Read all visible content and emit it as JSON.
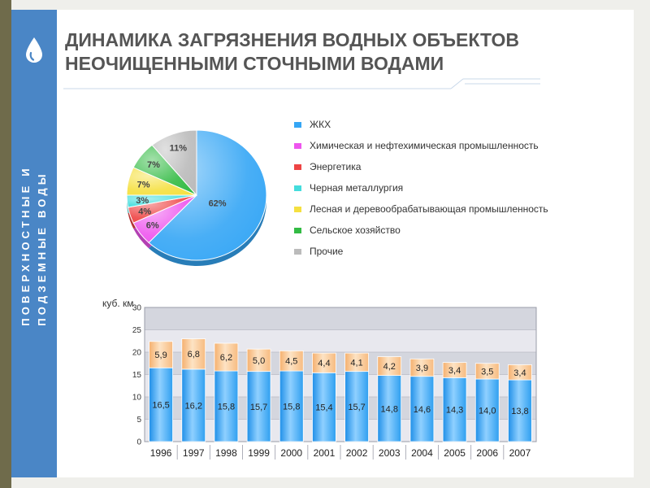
{
  "slide": {
    "title_lines": [
      "ДИНАМИКА ЗАГРЯЗНЕНИЯ ВОДНЫХ ОБЪЕКТОВ",
      "НЕОЧИЩЕННЫМИ СТОЧНЫМИ ВОДАМИ"
    ],
    "side_text_lines": [
      "ПОВЕРХНОСТНЫЕ И",
      "ПОДЗЕМНЫЕ ВОДЫ"
    ],
    "logo_icon": "water-drop-icon"
  },
  "colors": {
    "blue_strip": "#4a86c6",
    "olive_bar": "#6f6b4b",
    "bar_bottom": "#2f9ff0",
    "bar_top": "#f9c48a"
  },
  "chart_data": [
    {
      "type": "pie",
      "slices": [
        {
          "name": "ЖКХ",
          "value": 62,
          "label": "62%",
          "color": "#35a6f5"
        },
        {
          "name": "Химическая и нефтехимическая промышленность",
          "value": 6,
          "label": "6%",
          "color": "#ee55ee"
        },
        {
          "name": "Энергетика",
          "value": 4,
          "label": "4%",
          "color": "#ee4444"
        },
        {
          "name": "Черная металлургия",
          "value": 3,
          "label": "3%",
          "color": "#44dddd"
        },
        {
          "name": "Лесная и деревообрабатывающая промышленность",
          "value": 7,
          "label": "7%",
          "color": "#f5e040"
        },
        {
          "name": "Сельское хозяйство",
          "value": 7,
          "label": "7%",
          "color": "#33bb44"
        },
        {
          "name": "Прочие",
          "value": 11,
          "label": "11%",
          "color": "#bbbbbb"
        }
      ],
      "legend_placement": "right"
    },
    {
      "type": "bar",
      "stacked": true,
      "ylabel": "куб. км",
      "ylim": [
        0,
        30
      ],
      "yticks": [
        "0",
        "5",
        "10",
        "15",
        "20",
        "25",
        "30"
      ],
      "grid": true,
      "categories": [
        "1996",
        "1997",
        "1998",
        "1999",
        "2000",
        "2001",
        "2002",
        "2003",
        "2004",
        "2005",
        "2006",
        "2007"
      ],
      "series": [
        {
          "values": [
            16.5,
            16.2,
            15.8,
            15.7,
            15.8,
            15.4,
            15.7,
            14.8,
            14.6,
            14.3,
            14.0,
            13.8
          ],
          "labels": [
            "16,5",
            "16,2",
            "15,8",
            "15,7",
            "15,8",
            "15,4",
            "15,7",
            "14,8",
            "14,6",
            "14,3",
            "14,0",
            "13,8"
          ]
        },
        {
          "values": [
            5.9,
            6.8,
            6.2,
            5.0,
            4.5,
            4.4,
            4.1,
            4.2,
            3.9,
            3.4,
            3.5,
            3.4
          ],
          "labels": [
            "5,9",
            "6,8",
            "6,2",
            "5,0",
            "4,5",
            "4,4",
            "4,1",
            "4,2",
            "3,9",
            "3,4",
            "3,5",
            "3,4"
          ]
        }
      ]
    }
  ]
}
